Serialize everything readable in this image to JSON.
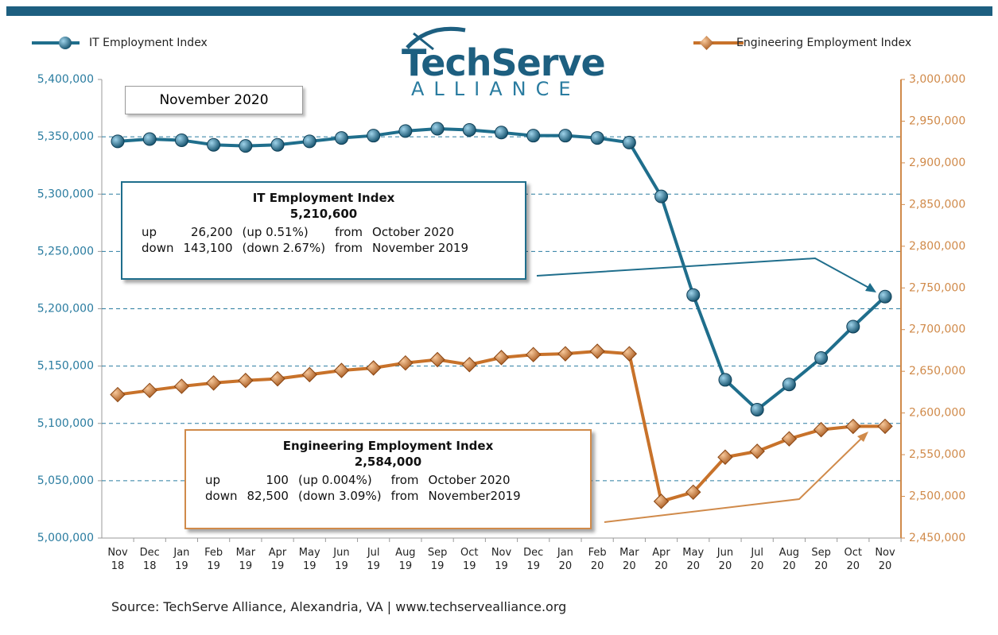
{
  "chart_data": {
    "type": "line",
    "date_label": "November 2020",
    "logo": {
      "name": "TechServe",
      "tagline": "ALLIANCE"
    },
    "source": "Source: TechServe Alliance, Alexandria, VA | www.techservealliance.org",
    "categories": [
      "Nov 18",
      "Dec 18",
      "Jan 19",
      "Feb 19",
      "Mar 19",
      "Apr 19",
      "May 19",
      "Jun 19",
      "Jul 19",
      "Aug 19",
      "Sep 19",
      "Oct 19",
      "Nov 19",
      "Dec 19",
      "Jan 20",
      "Feb 20",
      "Mar 20",
      "Apr 20",
      "May 20",
      "Jun 20",
      "Jul 20",
      "Aug 20",
      "Sep 20",
      "Oct 20",
      "Nov 20"
    ],
    "series": [
      {
        "name": "IT Employment Index",
        "color": "#1f6e8c",
        "axis": "y",
        "values": [
          5346000,
          5348000,
          5347000,
          5343000,
          5342000,
          5343000,
          5346000,
          5349000,
          5351000,
          5355000,
          5357000,
          5356000,
          5353700,
          5351000,
          5351000,
          5349000,
          5345000,
          5298000,
          5212000,
          5138000,
          5112000,
          5134000,
          5157000,
          5184400,
          5210600
        ]
      },
      {
        "name": "Engineering Employment Index",
        "color": "#c8722a",
        "axis": "y2",
        "values": [
          2622000,
          2627000,
          2632000,
          2636000,
          2639000,
          2641000,
          2646000,
          2651000,
          2654000,
          2660000,
          2664000,
          2658000,
          2666500,
          2670000,
          2671000,
          2674000,
          2671000,
          2494000,
          2505000,
          2547000,
          2554000,
          2569000,
          2580000,
          2583900,
          2584000
        ]
      }
    ],
    "ylim": [
      5000000,
      5400000
    ],
    "yticks": [
      {
        "value": 5000000,
        "label": "5,000,000"
      },
      {
        "value": 5050000,
        "label": "5,050,000"
      },
      {
        "value": 5100000,
        "label": "5,100,000"
      },
      {
        "value": 5150000,
        "label": "5,150,000"
      },
      {
        "value": 5200000,
        "label": "5,200,000"
      },
      {
        "value": 5250000,
        "label": "5,250,000"
      },
      {
        "value": 5300000,
        "label": "5,300,000"
      },
      {
        "value": 5350000,
        "label": "5,350,000"
      },
      {
        "value": 5400000,
        "label": "5,400,000"
      }
    ],
    "y2lim": [
      2450000,
      3000000
    ],
    "y2ticks": [
      {
        "value": 2450000,
        "label": "2,450,000"
      },
      {
        "value": 2500000,
        "label": "2,500,000"
      },
      {
        "value": 2550000,
        "label": "2,550,000"
      },
      {
        "value": 2600000,
        "label": "2,600,000"
      },
      {
        "value": 2650000,
        "label": "2,650,000"
      },
      {
        "value": 2700000,
        "label": "2,700,000"
      },
      {
        "value": 2750000,
        "label": "2,750,000"
      },
      {
        "value": 2800000,
        "label": "2,800,000"
      },
      {
        "value": 2850000,
        "label": "2,850,000"
      },
      {
        "value": 2900000,
        "label": "2,900,000"
      },
      {
        "value": 2950000,
        "label": "2,950,000"
      },
      {
        "value": 3000000,
        "label": "3,000,000"
      }
    ],
    "grid": true,
    "annotations": [
      {
        "title": "IT Employment Index",
        "value": "5,210,600",
        "rows": [
          [
            "up",
            "26,200",
            "(up 0.51%)",
            "from",
            "October 2020"
          ],
          [
            "down",
            "143,100",
            "(down 2.67%)",
            "from",
            "November 2019"
          ]
        ]
      },
      {
        "title": "Engineering Employment Index",
        "value": "2,584,000",
        "rows": [
          [
            "up",
            "100",
            "(up 0.004%)",
            "from",
            "October 2020"
          ],
          [
            "down",
            "82,500",
            "(down 3.09%)",
            "from",
            "November2019"
          ]
        ]
      }
    ]
  }
}
